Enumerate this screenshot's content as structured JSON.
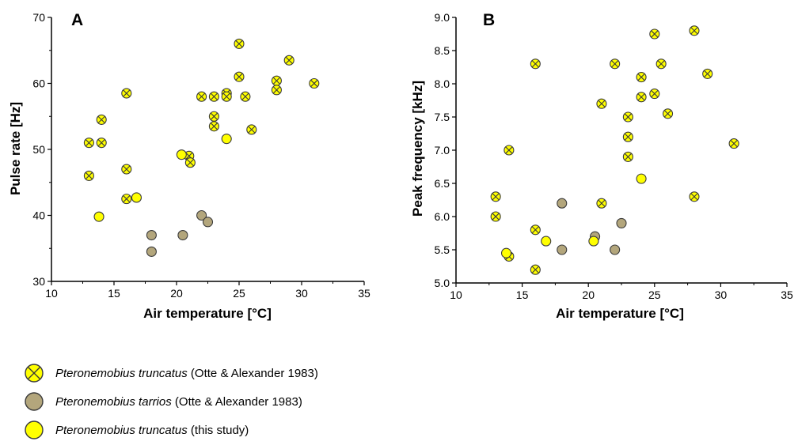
{
  "colors": {
    "truncatus_oa": "#ffff00",
    "tarrios": "#b3a67c",
    "truncatus_study": "#ffff00",
    "stroke": "#3a3a3a"
  },
  "legend": [
    {
      "species": "Pteronemobius truncatus",
      "source": " (Otte & Alexander 1983)",
      "marker": "cross"
    },
    {
      "species": "Pteronemobius tarrios",
      "source": " (Otte & Alexander 1983)",
      "marker": "tan"
    },
    {
      "species": "Pteronemobius truncatus",
      "source": " (this study)",
      "marker": "yellow"
    }
  ],
  "chart_data": [
    {
      "type": "scatter",
      "panel_label": "A",
      "xlabel": "Air temperature [°C]",
      "ylabel": "Pulse rate [Hz]",
      "xlim": [
        10,
        35
      ],
      "ylim": [
        30,
        70
      ],
      "xticks": [
        10,
        15,
        20,
        25,
        30,
        35
      ],
      "yticks": [
        30,
        40,
        50,
        60,
        70
      ],
      "series": [
        {
          "name": "Pteronemobius truncatus (Otte & Alexander 1983)",
          "marker": "cross",
          "points": [
            [
              13,
              51
            ],
            [
              13,
              46
            ],
            [
              14,
              54.5
            ],
            [
              14,
              51
            ],
            [
              16,
              58.5
            ],
            [
              16,
              47
            ],
            [
              16,
              42.5
            ],
            [
              21,
              49
            ],
            [
              21.1,
              48
            ],
            [
              22,
              58
            ],
            [
              23,
              58
            ],
            [
              23,
              55
            ],
            [
              23,
              53.5
            ],
            [
              24,
              58.5
            ],
            [
              24,
              58
            ],
            [
              25,
              66
            ],
            [
              25,
              61
            ],
            [
              25.5,
              58
            ],
            [
              26,
              53
            ],
            [
              28,
              60.4
            ],
            [
              28,
              59
            ],
            [
              29,
              63.5
            ],
            [
              31,
              60
            ]
          ]
        },
        {
          "name": "Pteronemobius tarrios (Otte & Alexander 1983)",
          "marker": "tan",
          "points": [
            [
              18,
              37
            ],
            [
              18,
              34.5
            ],
            [
              20.5,
              37
            ],
            [
              22,
              40
            ],
            [
              22.5,
              39
            ]
          ]
        },
        {
          "name": "Pteronemobius truncatus (this study)",
          "marker": "yellow",
          "points": [
            [
              13.8,
              39.8
            ],
            [
              16.8,
              42.7
            ],
            [
              20.4,
              49.2
            ],
            [
              24,
              51.6
            ]
          ]
        }
      ]
    },
    {
      "type": "scatter",
      "panel_label": "B",
      "xlabel": "Air temperature [°C]",
      "ylabel": "Peak frequency [kHz]",
      "xlim": [
        10,
        35
      ],
      "ylim": [
        5.0,
        9.0
      ],
      "xticks": [
        10,
        15,
        20,
        25,
        30,
        35
      ],
      "yticks": [
        "5.0",
        "5.5",
        "6.0",
        "6.5",
        "7.0",
        "7.5",
        "8.0",
        "8.5",
        "9.0"
      ],
      "series": [
        {
          "name": "Pteronemobius truncatus (Otte & Alexander 1983)",
          "marker": "cross",
          "points": [
            [
              13,
              6.3
            ],
            [
              13,
              6.0
            ],
            [
              14,
              7.0
            ],
            [
              14,
              5.4
            ],
            [
              16,
              8.3
            ],
            [
              16,
              5.8
            ],
            [
              16,
              5.2
            ],
            [
              21,
              7.7
            ],
            [
              21,
              6.2
            ],
            [
              22,
              8.3
            ],
            [
              23,
              7.5
            ],
            [
              23,
              7.2
            ],
            [
              23,
              6.9
            ],
            [
              24,
              8.1
            ],
            [
              24,
              7.8
            ],
            [
              25,
              8.75
            ],
            [
              25,
              7.85
            ],
            [
              25.5,
              8.3
            ],
            [
              26,
              7.55
            ],
            [
              28,
              8.8
            ],
            [
              28,
              6.3
            ],
            [
              29,
              8.15
            ],
            [
              31,
              7.1
            ]
          ]
        },
        {
          "name": "Pteronemobius tarrios (Otte & Alexander 1983)",
          "marker": "tan",
          "points": [
            [
              18,
              6.2
            ],
            [
              18,
              5.5
            ],
            [
              20.5,
              5.7
            ],
            [
              22,
              5.5
            ],
            [
              22.5,
              5.9
            ]
          ]
        },
        {
          "name": "Pteronemobius truncatus (this study)",
          "marker": "yellow",
          "points": [
            [
              13.8,
              5.45
            ],
            [
              16.8,
              5.63
            ],
            [
              20.4,
              5.63
            ],
            [
              24,
              6.57
            ]
          ]
        }
      ]
    }
  ]
}
